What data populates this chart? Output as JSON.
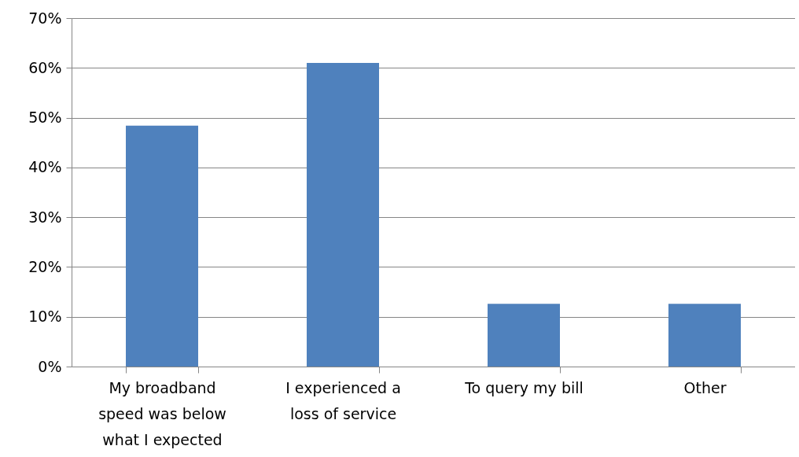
{
  "chart_data": {
    "type": "bar",
    "categories": [
      "My broadband speed was below what I expected",
      "I experienced a loss of service",
      "To query my bill",
      "Other"
    ],
    "values": [
      48.4,
      61,
      12.6,
      12.6
    ],
    "color": "#4f81bd",
    "ylim": [
      0,
      70
    ],
    "yticks": [
      {
        "value": 0,
        "label": "0%"
      },
      {
        "value": 10,
        "label": "10%"
      },
      {
        "value": 20,
        "label": "20%"
      },
      {
        "value": 30,
        "label": "30%"
      },
      {
        "value": 40,
        "label": "40%"
      },
      {
        "value": 50,
        "label": "50%"
      },
      {
        "value": 60,
        "label": "60%"
      },
      {
        "value": 70,
        "label": "70%"
      }
    ],
    "grid": "y"
  }
}
